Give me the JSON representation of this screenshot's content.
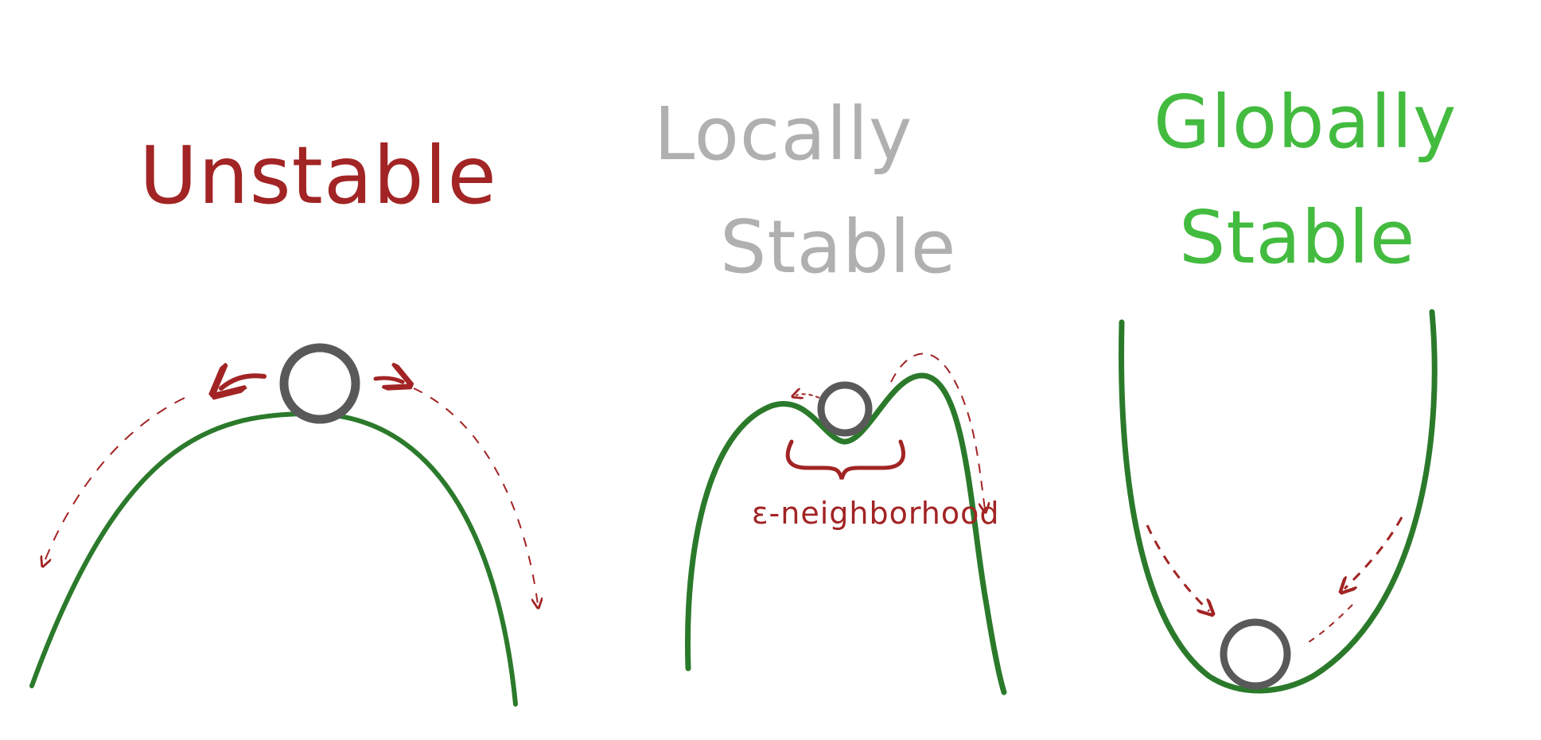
{
  "panels": [
    {
      "id": "unstable",
      "title_lines": [
        "Unstable"
      ],
      "title_color": "#a22424"
    },
    {
      "id": "locally-stable",
      "title_lines": [
        "Locally",
        "Stable"
      ],
      "title_color": "#b0b0b0",
      "annotation": "ε-neighborhood"
    },
    {
      "id": "globally-stable",
      "title_lines": [
        "Globally",
        "Stable"
      ],
      "title_color": "#43bb3f"
    }
  ],
  "colors": {
    "curve": "#2b7a2b",
    "ball": "#595959",
    "arrow": "#a22424"
  }
}
